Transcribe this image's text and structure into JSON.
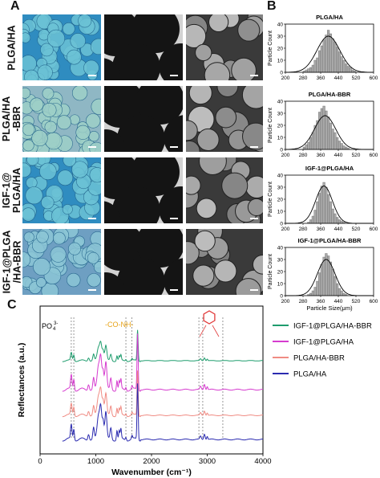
{
  "panels": {
    "a": {
      "letter": "A",
      "row_labels": [
        "PLGA/HA",
        "PLGA/HA\n-BBR",
        "IGF-1@\nPLGA/HA",
        "IGF-1@PLGA\n/HA-BBR"
      ]
    },
    "b": {
      "letter": "B",
      "ylabel": "Particle Count",
      "xlabel": "Particle Size(μm)"
    },
    "c": {
      "letter": "C",
      "annot_po4": "PO",
      "annot_po4_sub": "4",
      "annot_po4_sup": "3-",
      "annot_conh": "-CO-NH-"
    }
  },
  "chart_data": [
    {
      "type": "bar",
      "title": "PLGA/HA",
      "xticks": [
        "200",
        "280",
        "360",
        "440",
        "520",
        "600"
      ],
      "xlim": [
        200,
        600
      ],
      "ylim": [
        0,
        40
      ],
      "yticks": [
        "0",
        "10",
        "20",
        "30",
        "40"
      ],
      "bin_start": 280,
      "bin_width": 10,
      "values": [
        1,
        2,
        3,
        4,
        6,
        10,
        12,
        18,
        22,
        27,
        31,
        35,
        32,
        28,
        25,
        21,
        17,
        13,
        10,
        7,
        5,
        4,
        2,
        1
      ],
      "fit_mean": 395,
      "fit_sd": 52,
      "fit_peak": 30
    },
    {
      "type": "bar",
      "title": "PLGA/HA-BBR",
      "xticks": [
        "200",
        "280",
        "360",
        "440",
        "520",
        "600"
      ],
      "xlim": [
        200,
        600
      ],
      "ylim": [
        0,
        40
      ],
      "yticks": [
        "0",
        "10",
        "20",
        "30",
        "40"
      ],
      "bin_start": 280,
      "bin_width": 10,
      "values": [
        2,
        4,
        6,
        10,
        14,
        20,
        24,
        31,
        34,
        36,
        32,
        27,
        22,
        17,
        14,
        10,
        7,
        5,
        3,
        2,
        1
      ],
      "fit_mean": 380,
      "fit_sd": 48,
      "fit_peak": 28
    },
    {
      "type": "bar",
      "title": "IGF-1@PLGA/HA",
      "xticks": [
        "200",
        "280",
        "360",
        "440",
        "520",
        "600"
      ],
      "xlim": [
        200,
        600
      ],
      "ylim": [
        0,
        40
      ],
      "yticks": [
        "0",
        "10",
        "20",
        "30",
        "40"
      ],
      "bin_start": 300,
      "bin_width": 10,
      "values": [
        1,
        3,
        6,
        11,
        18,
        25,
        31,
        34,
        30,
        24,
        18,
        12,
        8,
        5,
        3,
        2,
        1
      ],
      "fit_mean": 375,
      "fit_sd": 38,
      "fit_peak": 31
    },
    {
      "type": "bar",
      "title": "IGF-1@PLGA/HA-BBR",
      "xticks": [
        "200",
        "280",
        "360",
        "440",
        "520",
        "600"
      ],
      "xlim": [
        200,
        600
      ],
      "ylim": [
        0,
        40
      ],
      "yticks": [
        "0",
        "10",
        "20",
        "30",
        "40"
      ],
      "bin_start": 300,
      "bin_width": 10,
      "values": [
        1,
        2,
        4,
        7,
        12,
        19,
        26,
        32,
        35,
        33,
        28,
        22,
        16,
        10,
        6,
        4,
        2,
        1
      ],
      "fit_mean": 385,
      "fit_sd": 40,
      "fit_peak": 30
    },
    {
      "type": "line",
      "xlabel": "Wavenumber (cm⁻¹)",
      "ylabel": "Reflectances (a.u.)",
      "xlim": [
        0,
        4000
      ],
      "xticks": [
        "0",
        "1000",
        "2000",
        "3000",
        "4000"
      ],
      "reference_lines": [
        560,
        605,
        1540,
        1650,
        2850,
        2920,
        3280
      ],
      "series": [
        {
          "name": "IGF-1@PLGA/HA-BBR",
          "color": "#1f9d6e",
          "offset": 3
        },
        {
          "name": "IGF-1@PLGA/HA",
          "color": "#d63ccf",
          "offset": 2
        },
        {
          "name": "PLGA/HA-BBR",
          "color": "#f08c84",
          "offset": 1
        },
        {
          "name": "PLGA/HA",
          "color": "#2b2bb0",
          "offset": 0
        }
      ]
    }
  ]
}
